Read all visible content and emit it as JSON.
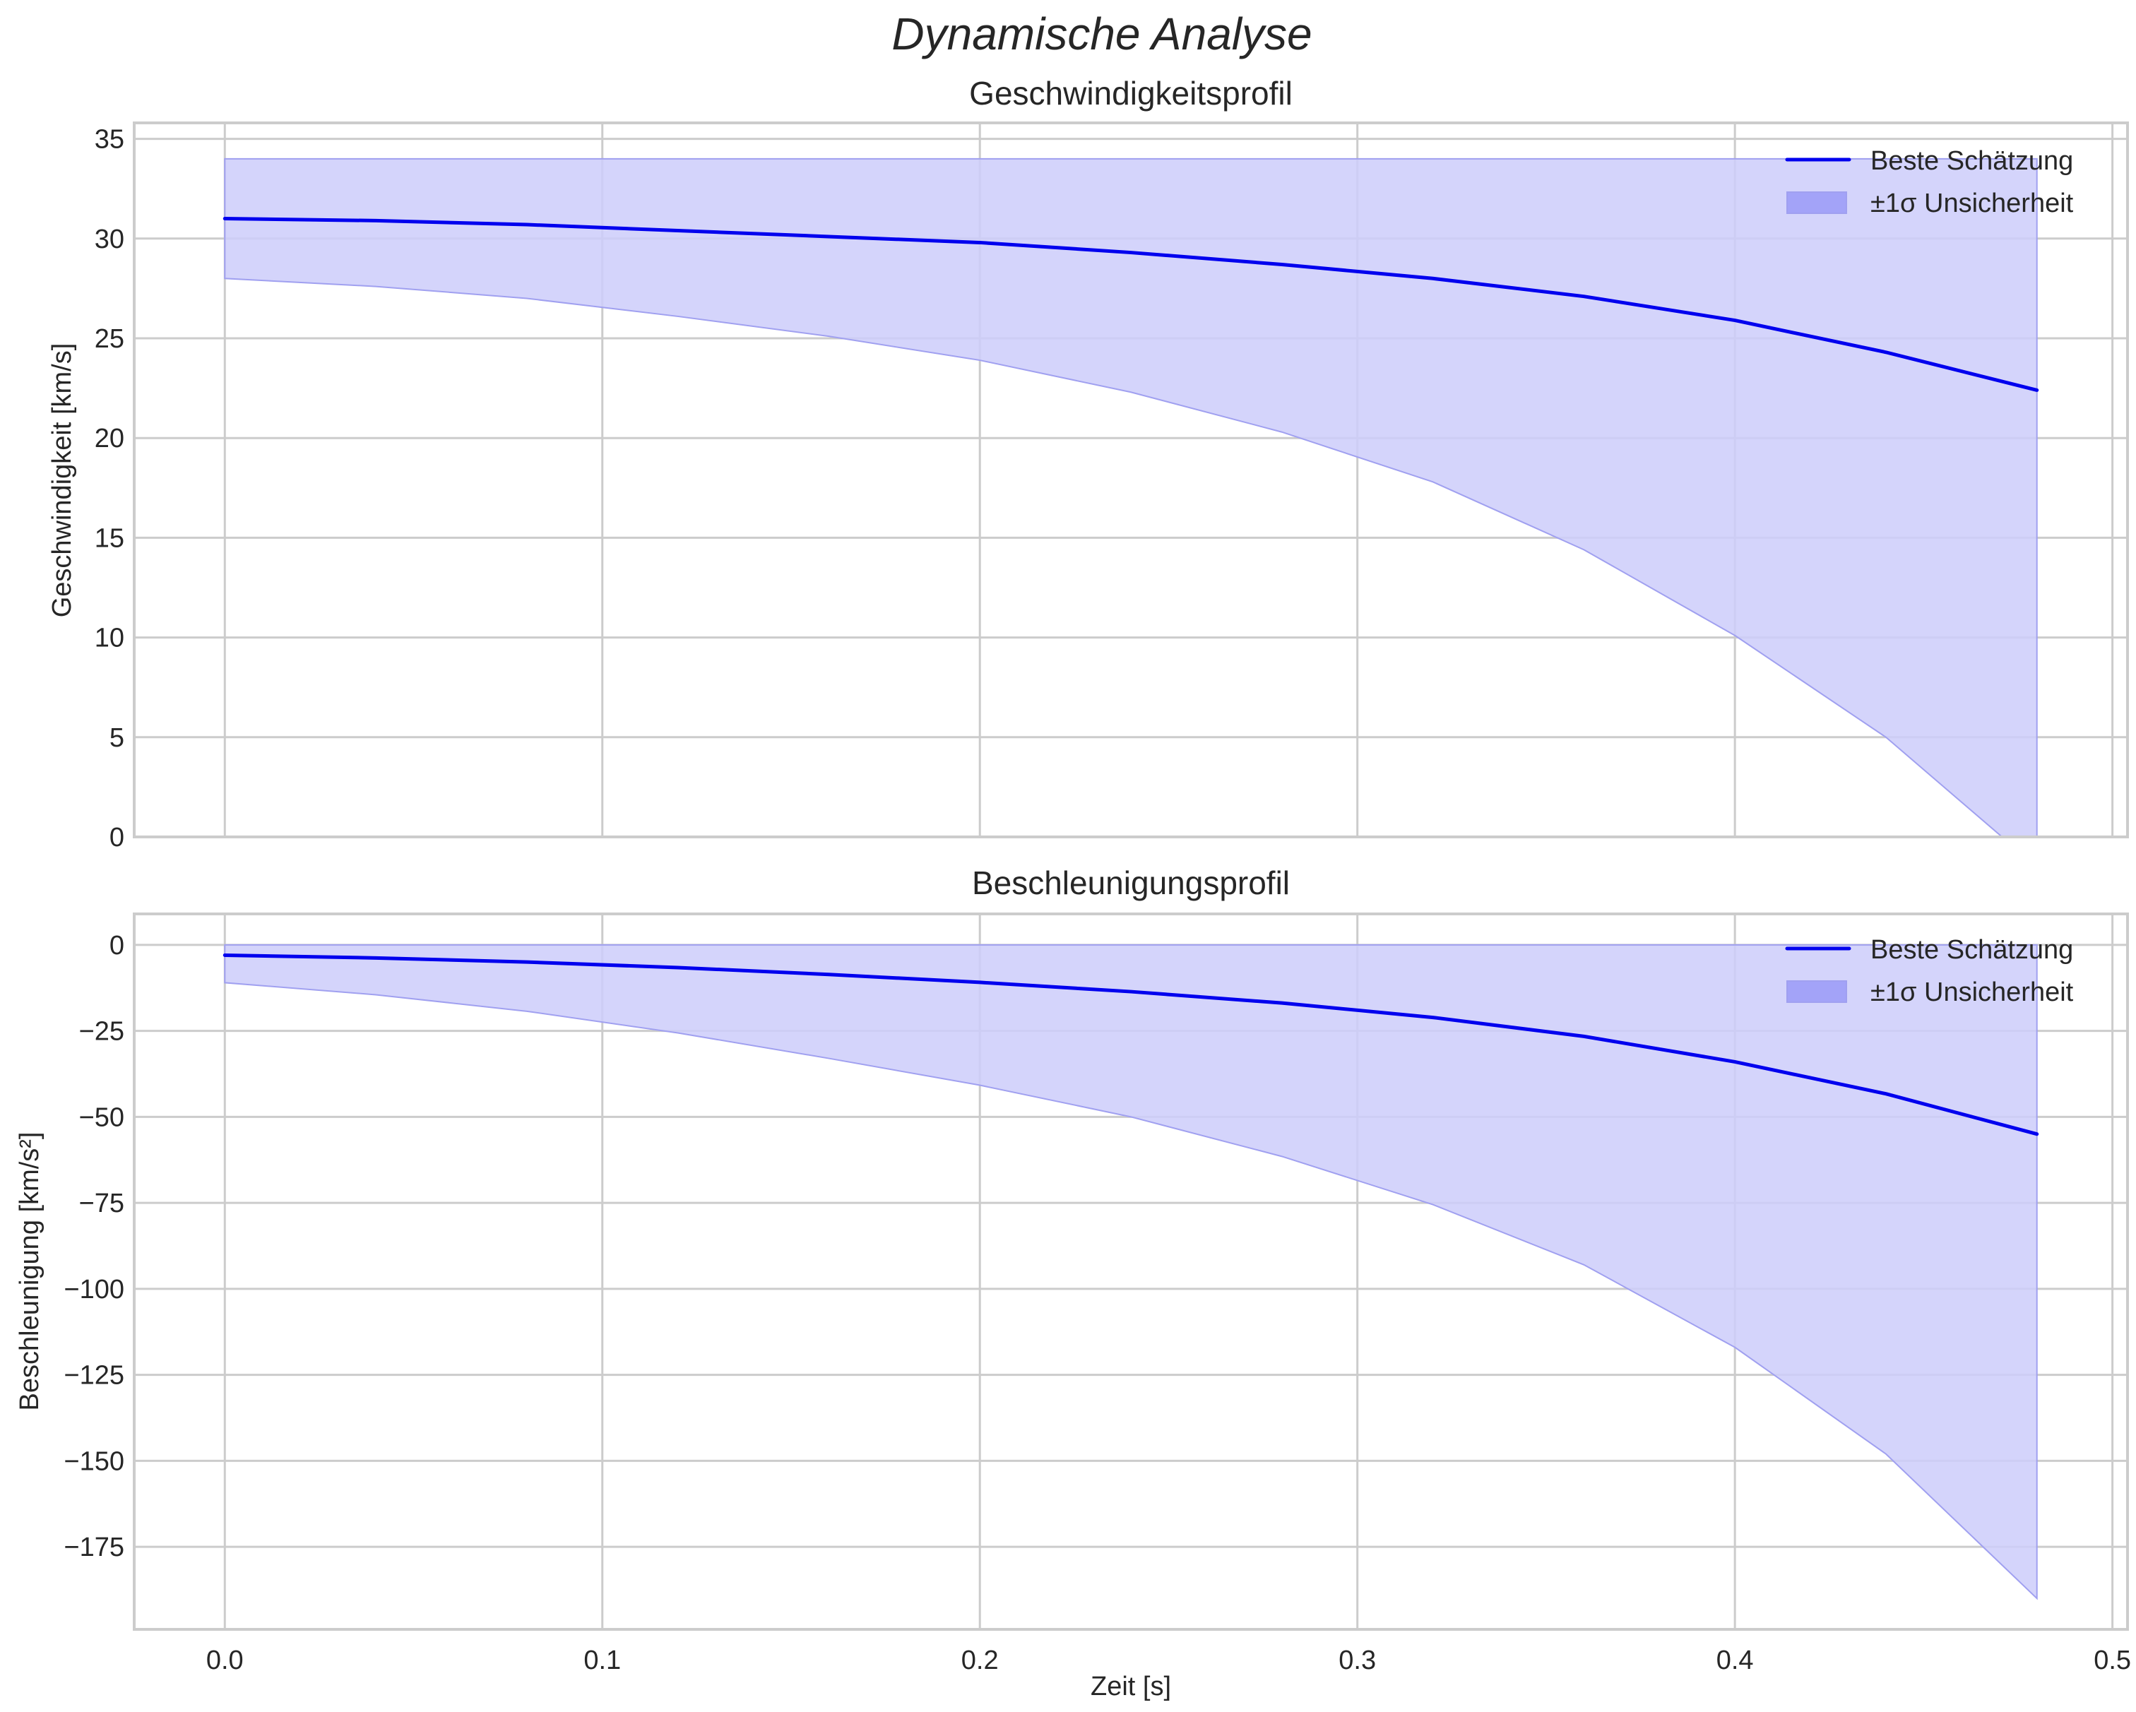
{
  "figure": {
    "suptitle": "Dynamische Analyse"
  },
  "colors": {
    "line": "#0000ee",
    "band_fill": "#ccccfa",
    "band_edge": "#a0a0f0",
    "grid": "#cccccc",
    "spine": "#cccccc",
    "text": "#262626"
  },
  "chart_data": [
    {
      "type": "line",
      "title": "Geschwindigkeitsprofil",
      "xlabel": "",
      "ylabel": "Geschwindigkeit [km/s]",
      "xlim": [
        -0.024,
        0.504
      ],
      "ylim": [
        0,
        35.8
      ],
      "xticks": [
        0.0,
        0.1,
        0.2,
        0.3,
        0.4,
        0.5
      ],
      "xtick_labels": [
        "",
        "",
        "",
        "",
        "",
        ""
      ],
      "yticks": [
        0,
        5,
        10,
        15,
        20,
        25,
        30,
        35
      ],
      "ytick_labels": [
        "0",
        "5",
        "10",
        "15",
        "20",
        "25",
        "30",
        "35"
      ],
      "grid": true,
      "legend_position": "upper right",
      "legend": [
        "Beste Schätzung",
        "±1σ Unsicherheit"
      ],
      "x": [
        0.0,
        0.04,
        0.08,
        0.12,
        0.16,
        0.2,
        0.24,
        0.28,
        0.32,
        0.36,
        0.4,
        0.44,
        0.48
      ],
      "series": [
        {
          "name": "Beste Schätzung",
          "kind": "line",
          "values": [
            31.0,
            30.9,
            30.7,
            30.4,
            30.1,
            29.8,
            29.3,
            28.7,
            28.0,
            27.1,
            25.9,
            24.3,
            22.4
          ]
        },
        {
          "name": "±1σ Unsicherheit (oben)",
          "kind": "band_upper",
          "values": [
            34.0,
            34.0,
            34.0,
            34.0,
            34.0,
            34.0,
            34.0,
            34.0,
            34.0,
            34.0,
            34.0,
            34.0,
            34.0
          ]
        },
        {
          "name": "±1σ Unsicherheit (unten)",
          "kind": "band_lower",
          "values": [
            28.0,
            27.6,
            27.0,
            26.1,
            25.1,
            23.9,
            22.3,
            20.3,
            17.8,
            14.4,
            10.1,
            5.0,
            -1.5
          ]
        }
      ]
    },
    {
      "type": "line",
      "title": "Beschleunigungsprofil",
      "xlabel": "Zeit [s]",
      "ylabel": "Beschleunigung [km/s²]",
      "xlim": [
        -0.024,
        0.504
      ],
      "ylim": [
        -199,
        9
      ],
      "xticks": [
        0.0,
        0.1,
        0.2,
        0.3,
        0.4,
        0.5
      ],
      "xtick_labels": [
        "0.0",
        "0.1",
        "0.2",
        "0.3",
        "0.4",
        "0.5"
      ],
      "yticks": [
        0,
        -25,
        -50,
        -75,
        -100,
        -125,
        -150,
        -175
      ],
      "ytick_labels": [
        "0",
        "−25",
        "−50",
        "−75",
        "−100",
        "−125",
        "−150",
        "−175"
      ],
      "grid": true,
      "legend_position": "upper right",
      "legend": [
        "Beste Schätzung",
        "±1σ Unsicherheit"
      ],
      "x": [
        0.0,
        0.04,
        0.08,
        0.12,
        0.16,
        0.2,
        0.24,
        0.28,
        0.32,
        0.36,
        0.4,
        0.44,
        0.48
      ],
      "series": [
        {
          "name": "Beste Schätzung",
          "kind": "line",
          "values": [
            -3.0,
            -3.8,
            -5.0,
            -6.6,
            -8.6,
            -10.9,
            -13.6,
            -16.9,
            -21.1,
            -26.6,
            -34.0,
            -43.3,
            -55.0
          ]
        },
        {
          "name": "±1σ Unsicherheit (oben)",
          "kind": "band_upper",
          "values": [
            0,
            0,
            0,
            0,
            0,
            0,
            0,
            0,
            0,
            0,
            0,
            0,
            0
          ]
        },
        {
          "name": "±1σ Unsicherheit (unten)",
          "kind": "band_lower",
          "values": [
            -11.0,
            -14.5,
            -19.3,
            -25.6,
            -33.0,
            -40.8,
            -50.0,
            -61.5,
            -75.5,
            -93.0,
            -117.0,
            -148.0,
            -190.0
          ]
        }
      ]
    }
  ]
}
